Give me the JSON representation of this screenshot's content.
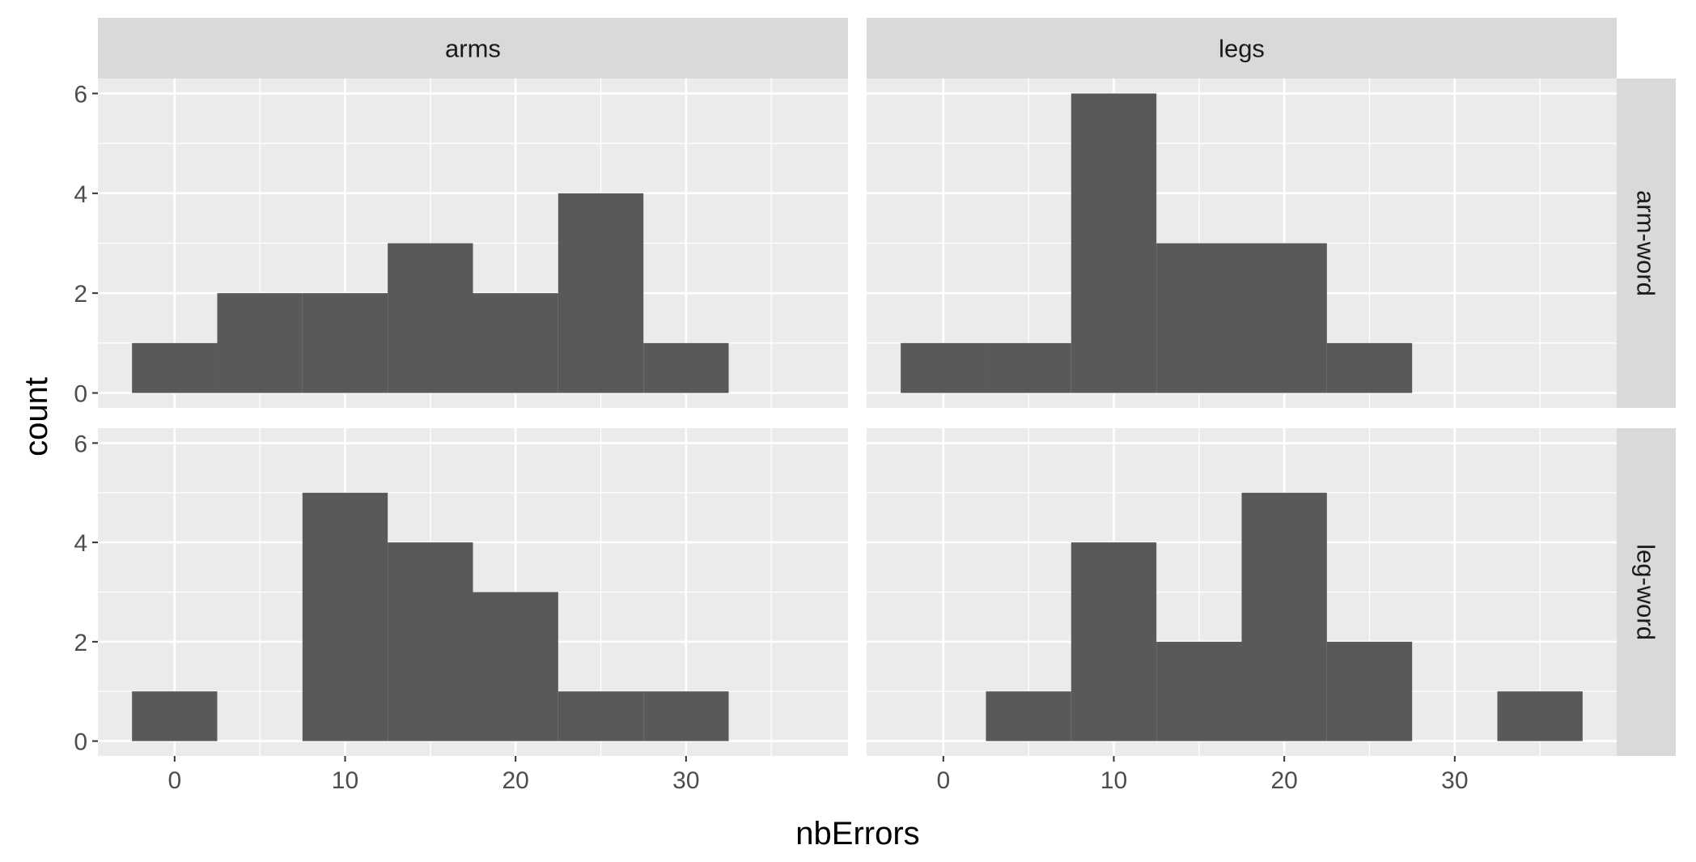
{
  "colors": {
    "panel_bg": "#ebebeb",
    "grid_major": "#ffffff",
    "strip_bg": "#d9d9d9",
    "bar_fill": "#595959",
    "axis_text": "#4d4d4d",
    "tick": "#333333"
  },
  "chart_data": {
    "type": "bar",
    "chart_kind": "faceted histogram",
    "xlabel": "nbErrors",
    "ylabel": "count",
    "x_ticks": [
      0,
      10,
      20,
      30
    ],
    "y_ticks": [
      0,
      2,
      4,
      6
    ],
    "xlim": [
      -4.5,
      39.5
    ],
    "ylim": [
      -0.3,
      6.3
    ],
    "binwidth": 5,
    "grid": true,
    "facet_columns": [
      "arms",
      "legs"
    ],
    "facet_rows": [
      "arm-word",
      "leg-word"
    ],
    "panels": [
      {
        "col": "arms",
        "row": "arm-word",
        "bins": [
          {
            "x": 0,
            "count": 1
          },
          {
            "x": 5,
            "count": 2
          },
          {
            "x": 10,
            "count": 2
          },
          {
            "x": 15,
            "count": 3
          },
          {
            "x": 20,
            "count": 2
          },
          {
            "x": 25,
            "count": 4
          },
          {
            "x": 30,
            "count": 1
          }
        ]
      },
      {
        "col": "legs",
        "row": "arm-word",
        "bins": [
          {
            "x": 0,
            "count": 1
          },
          {
            "x": 5,
            "count": 1
          },
          {
            "x": 10,
            "count": 6
          },
          {
            "x": 15,
            "count": 3
          },
          {
            "x": 20,
            "count": 3
          },
          {
            "x": 25,
            "count": 1
          }
        ]
      },
      {
        "col": "arms",
        "row": "leg-word",
        "bins": [
          {
            "x": 0,
            "count": 1
          },
          {
            "x": 10,
            "count": 5
          },
          {
            "x": 15,
            "count": 4
          },
          {
            "x": 20,
            "count": 3
          },
          {
            "x": 25,
            "count": 1
          },
          {
            "x": 30,
            "count": 1
          }
        ]
      },
      {
        "col": "legs",
        "row": "leg-word",
        "bins": [
          {
            "x": 5,
            "count": 1
          },
          {
            "x": 10,
            "count": 4
          },
          {
            "x": 15,
            "count": 2
          },
          {
            "x": 20,
            "count": 5
          },
          {
            "x": 25,
            "count": 2
          },
          {
            "x": 35,
            "count": 1
          }
        ]
      }
    ]
  }
}
